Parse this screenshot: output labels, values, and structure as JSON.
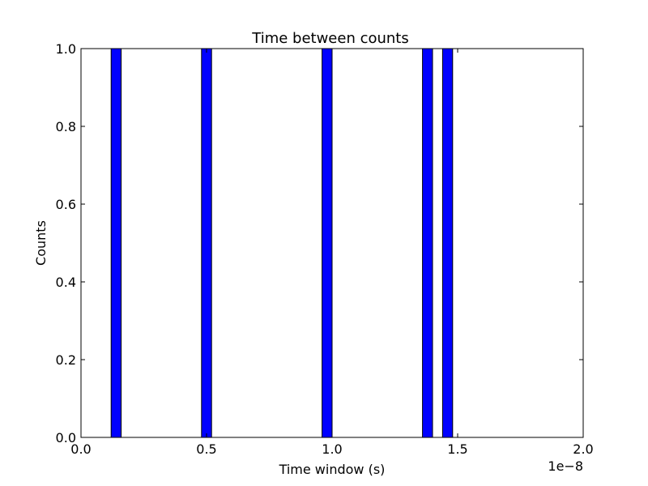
{
  "chart_data": {
    "type": "bar",
    "title": "Time between counts",
    "xlabel": "Time window (s)",
    "ylabel": "Counts",
    "x_offset_label": "1e−8",
    "xlim": [
      0.0,
      2.0
    ],
    "ylim": [
      0.0,
      1.0
    ],
    "x_ticks": [
      "0.0",
      "0.5",
      "1.0",
      "1.5",
      "2.0"
    ],
    "y_ticks": [
      "0.0",
      "0.2",
      "0.4",
      "0.6",
      "0.8",
      "1.0"
    ],
    "bins": [
      {
        "x_start": 0.12,
        "x_end": 0.16,
        "value": 1
      },
      {
        "x_start": 0.48,
        "x_end": 0.52,
        "value": 1
      },
      {
        "x_start": 0.96,
        "x_end": 1.0,
        "value": 1
      },
      {
        "x_start": 1.36,
        "x_end": 1.4,
        "value": 1
      },
      {
        "x_start": 1.44,
        "x_end": 1.48,
        "value": 1
      }
    ],
    "grid": false,
    "bar_color": "#0000ff",
    "edge_color": "#000000"
  }
}
